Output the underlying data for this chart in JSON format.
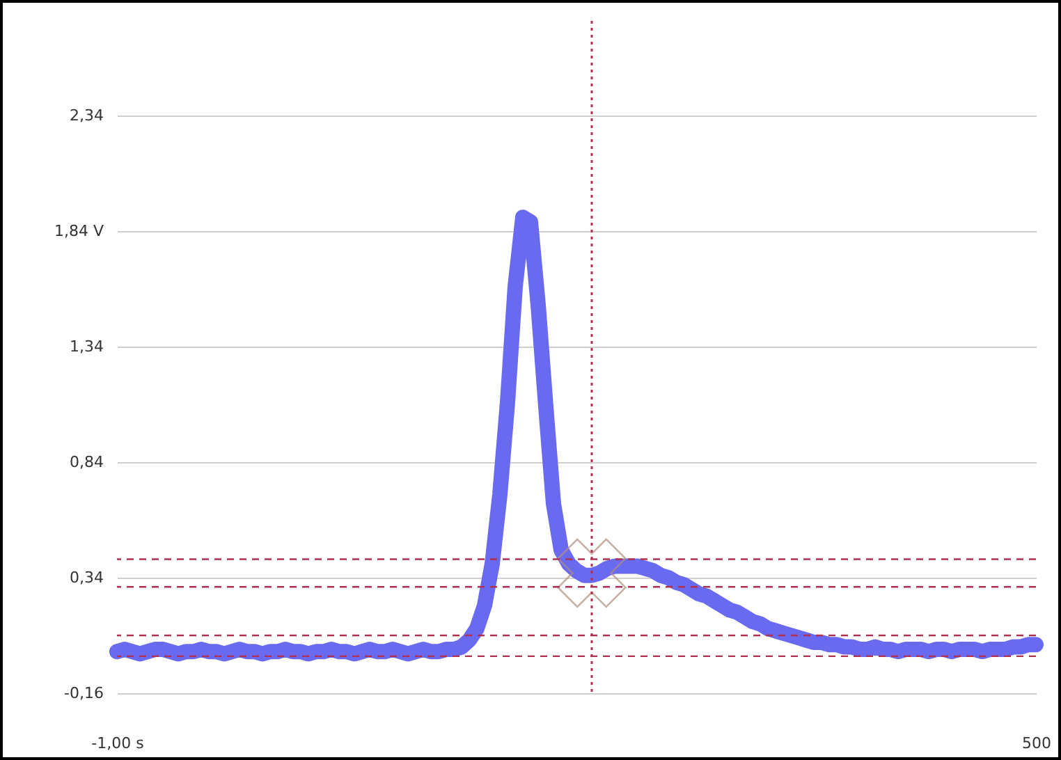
{
  "chart_data": {
    "type": "line",
    "categories": [
      "-1,00 s",
      null,
      null,
      null,
      null,
      null,
      null,
      null,
      null,
      null,
      null,
      null,
      null,
      null,
      null,
      null,
      null,
      null,
      null,
      null,
      null,
      null,
      null,
      null,
      null,
      null,
      null,
      null,
      null,
      null,
      null,
      null,
      null,
      null,
      null,
      null,
      null,
      null,
      null,
      null,
      null,
      null,
      null,
      null,
      null,
      null,
      null,
      null,
      null,
      null,
      null,
      null,
      null,
      null,
      null,
      null,
      null,
      null,
      null,
      null,
      null,
      null,
      null,
      null,
      null,
      null,
      null,
      null,
      null,
      null,
      null,
      null,
      null,
      null,
      null,
      null,
      null,
      null,
      null,
      null,
      null,
      null,
      null,
      null,
      null,
      null,
      null,
      null,
      null,
      null,
      null,
      null,
      null,
      null,
      null,
      null,
      null,
      null,
      null,
      null,
      null,
      null,
      null,
      null,
      null,
      null,
      null,
      null,
      null,
      null,
      null,
      null,
      null,
      null,
      null,
      null,
      null,
      null,
      null,
      null,
      "500"
    ],
    "series": [
      {
        "type": "line",
        "color": "#6a6af0",
        "values": [
          0.02,
          0.03,
          0.02,
          0.01,
          0.02,
          0.03,
          0.03,
          0.02,
          0.01,
          0.02,
          0.02,
          0.03,
          0.02,
          0.02,
          0.01,
          0.02,
          0.03,
          0.02,
          0.02,
          0.01,
          0.02,
          0.02,
          0.03,
          0.02,
          0.02,
          0.01,
          0.02,
          0.02,
          0.03,
          0.02,
          0.02,
          0.01,
          0.02,
          0.03,
          0.02,
          0.02,
          0.03,
          0.02,
          0.01,
          0.02,
          0.03,
          0.02,
          0.02,
          0.03,
          0.03,
          0.04,
          0.07,
          0.12,
          0.22,
          0.4,
          0.7,
          1.1,
          1.6,
          1.9,
          1.88,
          1.52,
          1.08,
          0.66,
          0.46,
          0.4,
          0.37,
          0.35,
          0.35,
          0.36,
          0.38,
          0.39,
          0.39,
          0.39,
          0.39,
          0.38,
          0.37,
          0.35,
          0.34,
          0.32,
          0.31,
          0.29,
          0.27,
          0.26,
          0.24,
          0.22,
          0.2,
          0.19,
          0.17,
          0.15,
          0.14,
          0.12,
          0.11,
          0.1,
          0.09,
          0.08,
          0.07,
          0.06,
          0.06,
          0.05,
          0.05,
          0.04,
          0.04,
          0.03,
          0.03,
          0.04,
          0.03,
          0.03,
          0.02,
          0.03,
          0.03,
          0.03,
          0.02,
          0.03,
          0.03,
          0.02,
          0.03,
          0.03,
          0.03,
          0.02,
          0.03,
          0.03,
          0.03,
          0.04,
          0.04,
          0.05,
          0.05
        ]
      },
      {
        "type": "scatter",
        "color": "#b09080",
        "marker": "cross",
        "values": [
          null,
          null,
          null,
          null,
          null,
          null,
          null,
          null,
          null,
          null,
          null,
          null,
          null,
          null,
          null,
          null,
          null,
          null,
          null,
          null,
          null,
          null,
          null,
          null,
          null,
          null,
          null,
          null,
          null,
          null,
          null,
          null,
          null,
          null,
          null,
          null,
          null,
          null,
          null,
          null,
          null,
          null,
          null,
          null,
          null,
          null,
          null,
          null,
          null,
          null,
          null,
          null,
          null,
          null,
          null,
          null,
          null,
          null,
          null,
          null,
          null,
          null,
          0.36,
          null,
          null,
          null,
          null,
          null,
          null,
          null,
          null,
          null,
          null,
          null,
          null,
          null,
          null,
          null,
          null,
          null,
          null,
          null,
          null,
          null,
          null,
          null,
          null,
          null,
          null,
          null,
          null,
          null,
          null,
          null,
          null,
          null,
          null,
          null,
          null,
          null,
          null,
          null,
          null,
          null,
          null,
          null,
          null,
          null,
          null,
          null,
          null,
          null,
          null,
          null,
          null,
          null,
          null,
          null,
          null,
          null,
          null
        ]
      }
    ],
    "ylim": [
      -0.16,
      2.75
    ],
    "yticks": [
      {
        "value": -0.16,
        "label": "-0,16"
      },
      {
        "value": 0.34,
        "label": "0,34"
      },
      {
        "value": 0.84,
        "label": "0,84"
      },
      {
        "value": 1.34,
        "label": "1,34"
      },
      {
        "value": 1.84,
        "label": "1,84 V"
      },
      {
        "value": 2.34,
        "label": "2,34"
      }
    ],
    "grid": "y",
    "ref_lines": [
      {
        "axis": "y",
        "value": 0.42,
        "color": "#b03050",
        "line_style": "dashed"
      },
      {
        "axis": "y",
        "value": 0.3,
        "color": "#b03050",
        "line_style": "dashed"
      },
      {
        "axis": "y",
        "value": 0.09,
        "color": "#b03050",
        "line_style": "dashed"
      },
      {
        "axis": "y",
        "value": 0.0,
        "color": "#b03050",
        "line_style": "dashed"
      }
    ]
  }
}
